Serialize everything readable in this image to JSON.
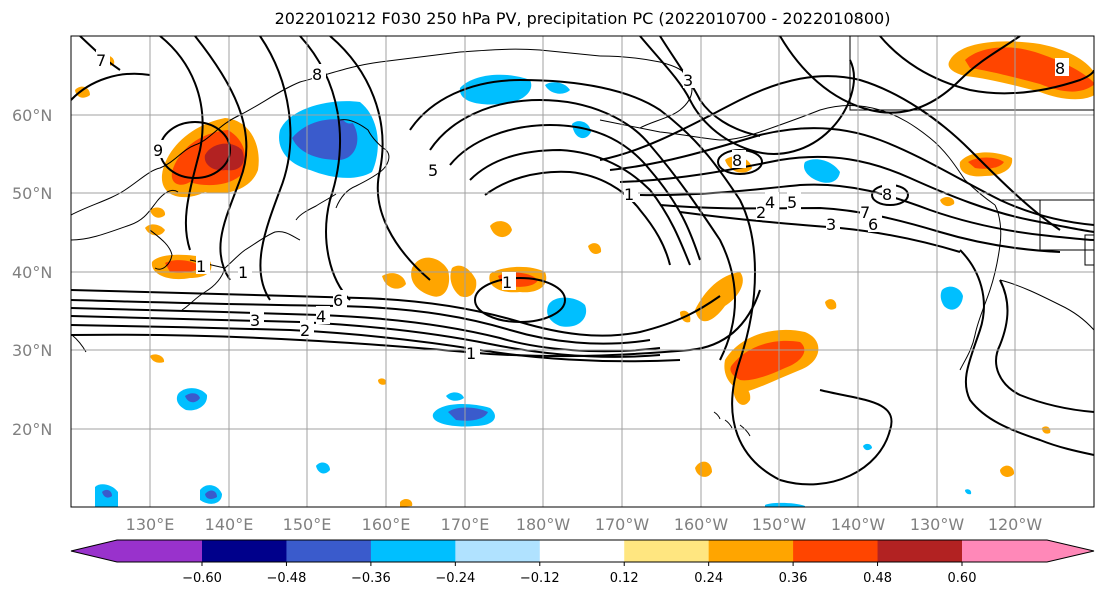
{
  "title": "2022010212 F030 250 hPa PV, precipitation PC (2022010700 - 2022010800)",
  "lat_labels": [
    "60°N",
    "50°N",
    "40°N",
    "30°N",
    "20°N"
  ],
  "lon_labels": [
    "130°E",
    "140°E",
    "150°E",
    "160°E",
    "170°E",
    "180°W",
    "170°W",
    "160°W",
    "150°W",
    "140°W",
    "130°W",
    "120°W"
  ],
  "colorbar": {
    "tick_labels": [
      "−0.60",
      "−0.48",
      "−0.36",
      "−0.24",
      "−0.12",
      "0.12",
      "0.24",
      "0.36",
      "0.48",
      "0.60"
    ],
    "colors": [
      "#9932cc",
      "#00008b",
      "#3a5bcc",
      "#00bfff",
      "#b0e2ff",
      "#ffffff",
      "#ffe680",
      "#ffa500",
      "#ff4500",
      "#b22222",
      "#ff88b8"
    ]
  },
  "contour_labels": {
    "c1": "1",
    "c2": "2",
    "c3": "3",
    "c4": "4",
    "c5": "5",
    "c6": "6",
    "c7": "7",
    "c8": "8",
    "c9": "9"
  },
  "colors": {
    "grid": "#a0a0a0",
    "contour": "#000000",
    "coast": "#000000"
  }
}
